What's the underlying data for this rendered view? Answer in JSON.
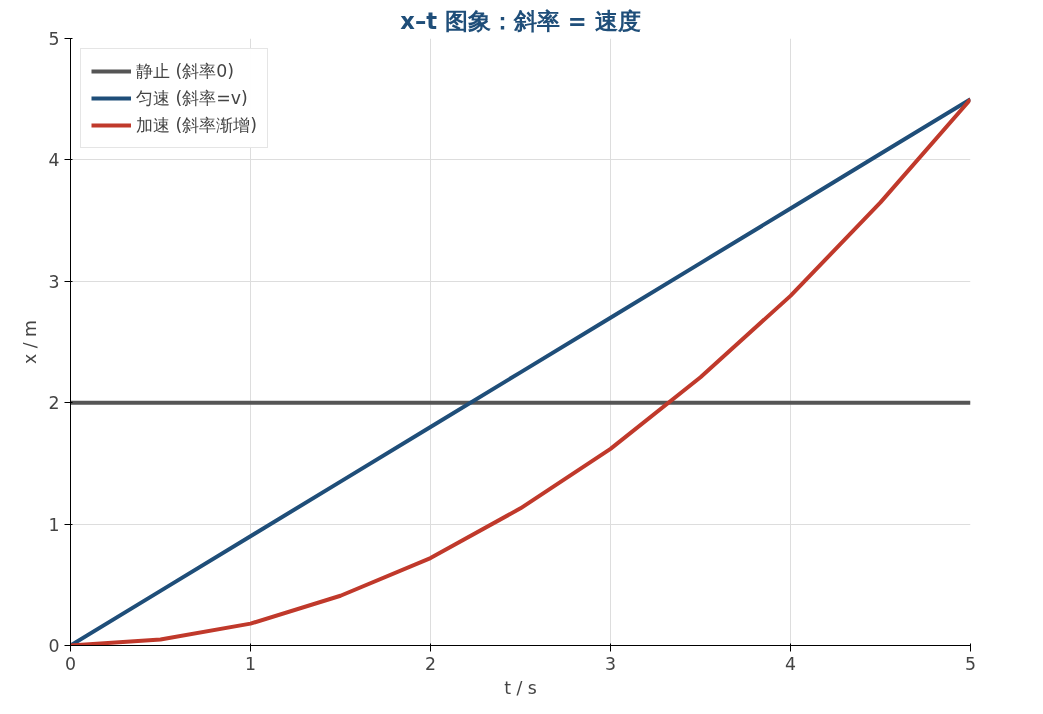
{
  "chart_data": {
    "type": "line",
    "title": "x–t 图象：斜率 = 速度",
    "xlabel": "t / s",
    "ylabel": "x / m",
    "x": [
      0,
      0.5,
      1,
      1.5,
      2,
      2.5,
      3,
      3.5,
      4,
      4.5,
      5
    ],
    "series": [
      {
        "name": "静止 (斜率0)",
        "color": "#555555",
        "values": [
          2,
          2,
          2,
          2,
          2,
          2,
          2,
          2,
          2,
          2,
          2
        ]
      },
      {
        "name": "匀速 (斜率=v)",
        "color": "#1f4e79",
        "values": [
          0,
          0.45,
          0.9,
          1.35,
          1.8,
          2.25,
          2.7,
          3.15,
          3.6,
          4.05,
          4.5
        ]
      },
      {
        "name": "加速 (斜率渐增)",
        "color": "#c0392b",
        "values": [
          0,
          0.05,
          0.18,
          0.41,
          0.72,
          1.13,
          1.62,
          2.21,
          2.88,
          3.65,
          4.5
        ]
      }
    ],
    "xlim": [
      0,
      5
    ],
    "ylim": [
      0,
      5
    ],
    "xticks": [
      0,
      1,
      2,
      3,
      4,
      5
    ],
    "yticks": [
      0,
      1,
      2,
      3,
      4,
      5
    ],
    "grid": true,
    "legend": "top left",
    "marker": "none",
    "line_style": "solid"
  }
}
